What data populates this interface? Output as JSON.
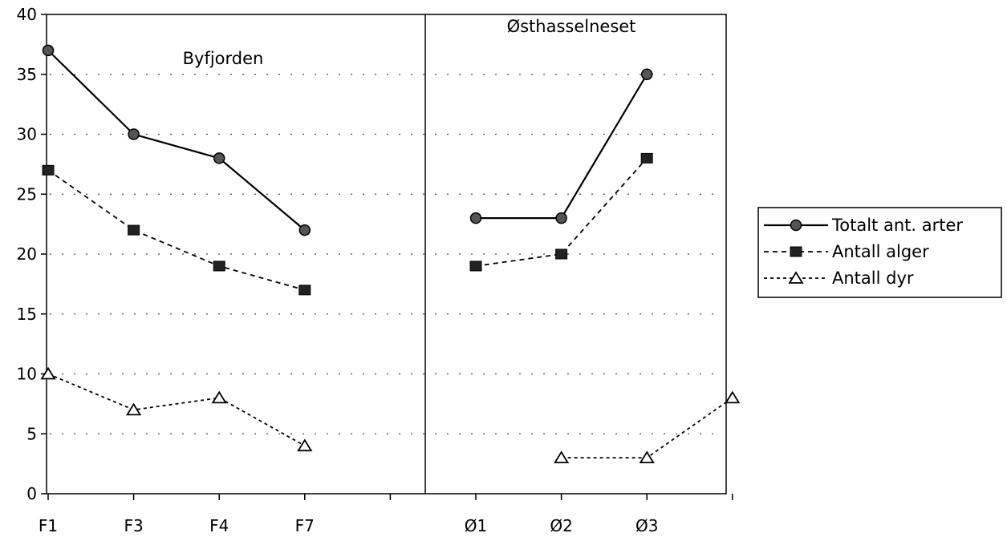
{
  "chart_data": {
    "type": "line",
    "title": "",
    "xlabel": "",
    "ylabel": "",
    "ylim": [
      0,
      40
    ],
    "y_ticks": [
      "0",
      "5",
      "10",
      "15",
      "20",
      "25",
      "30",
      "35",
      "40"
    ],
    "categories": [
      "F1",
      "F3",
      "F4",
      "F7",
      "",
      "Ø1",
      "Ø2",
      "Ø3",
      ""
    ],
    "sections": [
      {
        "label": "Byfjorden"
      },
      {
        "label": "Østhasselneset"
      }
    ],
    "grid": "dotted horizontal",
    "legend_position": "right",
    "series": [
      {
        "name": "Totalt ant. arter",
        "marker": "circle",
        "line": "solid",
        "values": [
          37,
          30,
          28,
          22,
          null,
          23,
          23,
          35,
          null
        ]
      },
      {
        "name": "Antall alger",
        "marker": "square",
        "line": "dashed",
        "values": [
          27,
          22,
          19,
          17,
          null,
          19,
          20,
          28,
          null
        ]
      },
      {
        "name": "Antall dyr",
        "marker": "triangle",
        "line": "dotted",
        "values": [
          10,
          7,
          8,
          4,
          null,
          null,
          3,
          3,
          8
        ]
      }
    ]
  }
}
